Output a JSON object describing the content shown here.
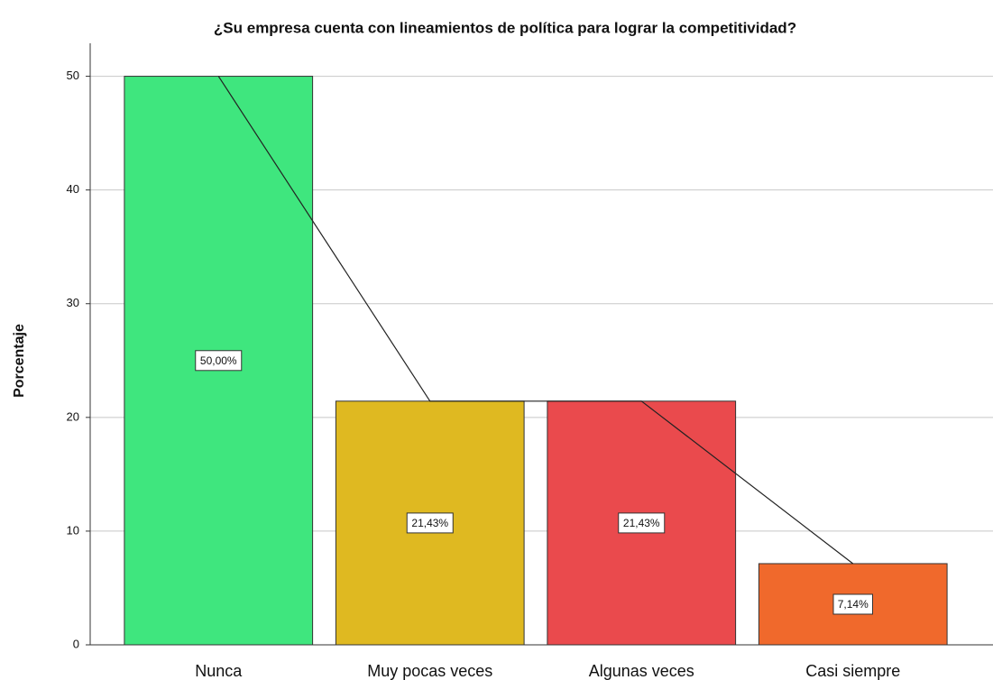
{
  "chart_data": {
    "type": "bar",
    "title": "¿Su empresa cuenta con lineamientos de política para lograr la competitividad?",
    "ylabel": "Porcentaje",
    "categories": [
      "Nunca",
      "Muy pocas veces",
      "Algunas veces",
      "Casi siempre"
    ],
    "values": [
      50,
      21.43,
      21.43,
      7.14
    ],
    "value_labels": [
      "50,00%",
      "21,43%",
      "21,43%",
      "7,14%"
    ],
    "colors": [
      "#3fe67e",
      "#dfb921",
      "#ea4a4d",
      "#f0692c"
    ],
    "line": true,
    "ylim": [
      0,
      52.9
    ],
    "yticks": [
      0,
      10,
      20,
      30,
      40,
      50
    ],
    "grid": true
  }
}
